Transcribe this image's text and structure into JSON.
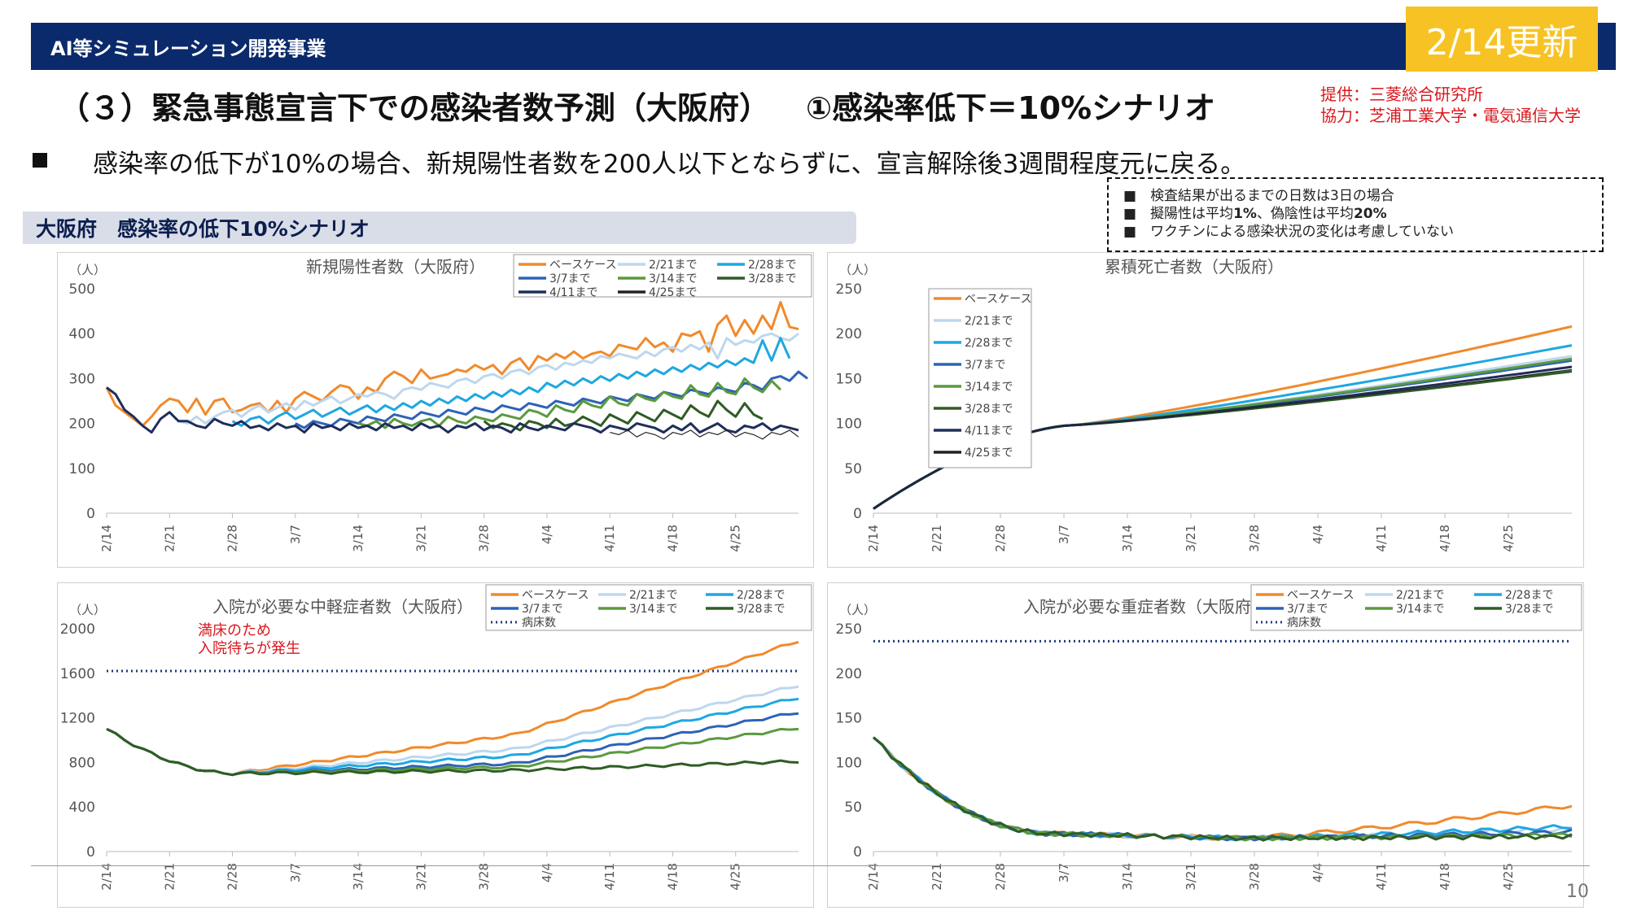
{
  "header": {
    "title": "AI等シミュレーション開発事業",
    "update_badge": "2/14更新"
  },
  "slide": {
    "title": "（３）緊急事態宣言下での感染者数予測（大阪府）",
    "scenario": "①感染率低下＝10%シナリオ",
    "provider": "提供：三菱総合研究所",
    "cooperation": "協力：芝浦工業大学・電気通信大学",
    "summary": "感染率の低下が10%の場合、新規陽性者数を200人以下とならずに、宣言解除後3週間程度元に戻る。",
    "notes": [
      {
        "pre": "検査結果が出るまでの日数は3日の場合",
        "bold1": "",
        "mid": "",
        "bold2": ""
      },
      {
        "pre": "擬陽性は平均",
        "bold1": "1%",
        "mid": "、偽陰性は平均",
        "bold2": "20%"
      },
      {
        "pre": "ワクチンによる感染状況の変化は考慮していない",
        "bold1": "",
        "mid": "",
        "bold2": ""
      }
    ],
    "section_label": "大阪府　感染率の低下10%シナリオ",
    "page_number": "10"
  },
  "colors": {
    "header_bg": "#0b2a6b",
    "badge": "#f7c324",
    "accent_red": "#d9171d",
    "base": "#f08a2c",
    "s221": "#bdd7ee",
    "s228": "#1ea7e1",
    "s37": "#2e62b8",
    "s314": "#5a9a3e",
    "s328": "#2f5c24",
    "s411": "#1f2e5a",
    "s425": "#222222",
    "beds": "#1f3a7a"
  },
  "chart_data": [
    {
      "type": "line",
      "title": "新規陽性者数（大阪府）",
      "unit": "（人）",
      "ylim": [
        0,
        500
      ],
      "yticks": [
        0,
        100,
        200,
        300,
        400,
        500
      ],
      "xticks": [
        "2/14",
        "2/21",
        "2/28",
        "3/7",
        "3/14",
        "3/21",
        "3/28",
        "4/4",
        "4/11",
        "4/18",
        "4/25"
      ],
      "x_days": 78,
      "legend": "top-right",
      "series": [
        {
          "name": "ベースケース",
          "color": "#f08a2c",
          "start": 0,
          "values": [
            280,
            240,
            225,
            210,
            195,
            215,
            240,
            255,
            250,
            225,
            255,
            220,
            250,
            255,
            225,
            230,
            240,
            245,
            225,
            250,
            225,
            255,
            270,
            260,
            250,
            270,
            285,
            280,
            255,
            280,
            270,
            300,
            315,
            305,
            290,
            320,
            300,
            305,
            310,
            320,
            315,
            330,
            320,
            330,
            310,
            335,
            345,
            320,
            350,
            340,
            355,
            345,
            360,
            345,
            355,
            360,
            350,
            375,
            370,
            365,
            390,
            370,
            380,
            360,
            400,
            395,
            405,
            360,
            420,
            440,
            395,
            430,
            400,
            440,
            410,
            470,
            415,
            410
          ]
        },
        {
          "name": "2/21まで",
          "color": "#bdd7ee",
          "start": 7,
          "values": [
            225,
            205,
            200,
            215,
            200,
            215,
            225,
            230,
            215,
            230,
            240,
            225,
            235,
            245,
            230,
            250,
            240,
            250,
            260,
            245,
            255,
            265,
            260,
            270,
            265,
            255,
            275,
            280,
            275,
            290,
            285,
            280,
            295,
            300,
            290,
            305,
            310,
            300,
            315,
            320,
            310,
            325,
            330,
            320,
            335,
            330,
            340,
            335,
            350,
            345,
            355,
            350,
            345,
            360,
            350,
            365,
            370,
            360,
            375,
            365,
            380,
            345,
            390,
            375,
            385,
            380,
            395,
            400,
            390,
            385,
            400
          ]
        },
        {
          "name": "2/28まで",
          "color": "#1ea7e1",
          "start": 14,
          "values": [
            205,
            195,
            210,
            215,
            200,
            215,
            225,
            210,
            220,
            230,
            215,
            225,
            235,
            220,
            230,
            240,
            225,
            240,
            230,
            245,
            235,
            250,
            240,
            255,
            245,
            260,
            250,
            265,
            255,
            270,
            260,
            275,
            265,
            280,
            270,
            290,
            280,
            295,
            285,
            300,
            290,
            305,
            295,
            310,
            300,
            315,
            305,
            320,
            310,
            325,
            315,
            330,
            320,
            335,
            325,
            340,
            330,
            345,
            335,
            385,
            340,
            390,
            345
          ]
        },
        {
          "name": "3/7まで",
          "color": "#2e62b8",
          "start": 21,
          "values": [
            200,
            190,
            205,
            200,
            195,
            210,
            205,
            200,
            215,
            210,
            205,
            220,
            215,
            210,
            225,
            220,
            215,
            230,
            225,
            220,
            235,
            230,
            225,
            240,
            235,
            230,
            245,
            240,
            235,
            250,
            245,
            240,
            255,
            250,
            245,
            260,
            255,
            250,
            265,
            260,
            255,
            270,
            265,
            260,
            275,
            270,
            265,
            280,
            275,
            270,
            290,
            285,
            275,
            300,
            305,
            295,
            315,
            300
          ]
        },
        {
          "name": "3/14まで",
          "color": "#5a9a3e",
          "start": 28,
          "values": [
            200,
            195,
            205,
            190,
            210,
            200,
            195,
            205,
            210,
            195,
            215,
            205,
            200,
            215,
            210,
            205,
            220,
            215,
            210,
            230,
            225,
            215,
            240,
            230,
            225,
            250,
            240,
            235,
            260,
            245,
            240,
            265,
            255,
            250,
            270,
            260,
            255,
            285,
            265,
            260,
            290,
            270,
            265,
            300,
            280,
            270,
            295,
            275
          ]
        },
        {
          "name": "3/28まで",
          "color": "#2f5c24",
          "start": 42,
          "values": [
            205,
            190,
            200,
            195,
            185,
            205,
            200,
            190,
            210,
            195,
            200,
            215,
            205,
            195,
            220,
            210,
            200,
            225,
            215,
            205,
            230,
            220,
            210,
            240,
            225,
            215,
            250,
            230,
            215,
            245,
            220,
            210
          ]
        },
        {
          "name": "4/11まで",
          "color": "#1f2e5a",
          "start": 0,
          "values": [
            280,
            265,
            230,
            215,
            195,
            180,
            210,
            225,
            205,
            205,
            195,
            190,
            210,
            200,
            195,
            205,
            190,
            195,
            185,
            200,
            190,
            195,
            180,
            200,
            190,
            195,
            185,
            200,
            190,
            195,
            185,
            200,
            190,
            195,
            185,
            200,
            190,
            195,
            180,
            195,
            190,
            200,
            185,
            195,
            190,
            180,
            200,
            190,
            185,
            195,
            190,
            185,
            200,
            195,
            190,
            180,
            195,
            190,
            185,
            200,
            195,
            190,
            180,
            195,
            185,
            200,
            180,
            190,
            200,
            185,
            180,
            195,
            190,
            200,
            185,
            195,
            190,
            185
          ]
        },
        {
          "name": "4/25まで",
          "color": "#222222",
          "start": 56,
          "values": [
            180,
            175,
            185,
            170,
            180,
            175,
            165,
            180,
            175,
            185,
            170,
            180,
            175,
            185,
            170,
            180,
            175,
            165,
            180,
            175,
            185,
            170
          ]
        }
      ]
    },
    {
      "type": "line",
      "title": "累積死亡者数（大阪府）",
      "unit": "（人）",
      "ylim": [
        0,
        250
      ],
      "yticks": [
        0,
        50,
        100,
        150,
        200,
        250
      ],
      "xticks": [
        "2/14",
        "2/21",
        "2/28",
        "3/7",
        "3/14",
        "3/21",
        "3/28",
        "4/4",
        "4/11",
        "4/18",
        "4/25"
      ],
      "x_days": 78,
      "legend": "top-left",
      "series": [
        {
          "name": "ベースケース",
          "color": "#f08a2c",
          "end": 208
        },
        {
          "name": "2/21まで",
          "color": "#bdd7ee",
          "end": 175
        },
        {
          "name": "2/28まで",
          "color": "#1ea7e1",
          "end": 187
        },
        {
          "name": "3/7まで",
          "color": "#2e62b8",
          "end": 170
        },
        {
          "name": "3/14まで",
          "color": "#5a9a3e",
          "end": 172
        },
        {
          "name": "3/28まで",
          "color": "#2f5c24",
          "end": 158
        },
        {
          "name": "4/11まで",
          "color": "#1f2e5a",
          "end": 163
        },
        {
          "name": "4/25まで",
          "color": "#222222",
          "end": 160
        }
      ]
    },
    {
      "type": "line",
      "title": "入院が必要な中軽症者数（大阪府）",
      "unit": "（人）",
      "ylim": [
        0,
        2000
      ],
      "yticks": [
        0,
        400,
        800,
        1200,
        1600,
        2000
      ],
      "xticks": [
        "2/14",
        "2/21",
        "2/28",
        "3/7",
        "3/14",
        "3/21",
        "3/28",
        "4/4",
        "4/11",
        "4/18",
        "4/25"
      ],
      "x_days": 78,
      "legend": "top-right",
      "annotation": "満床のため 入院待ちが発生",
      "bed_line": {
        "name": "病床数",
        "value": 1620
      },
      "series": [
        {
          "name": "ベースケース",
          "color": "#f08a2c",
          "end": 1890,
          "mid": 1050
        },
        {
          "name": "2/21まで",
          "color": "#bdd7ee",
          "end": 1490,
          "mid": 920
        },
        {
          "name": "2/28まで",
          "color": "#1ea7e1",
          "end": 1380,
          "mid": 860
        },
        {
          "name": "3/7まで",
          "color": "#2e62b8",
          "end": 1250,
          "mid": 790
        },
        {
          "name": "3/14まで",
          "color": "#5a9a3e",
          "end": 1110,
          "mid": 760
        },
        {
          "name": "3/28まで",
          "color": "#2f5c24",
          "end": 810,
          "mid": 730
        }
      ]
    },
    {
      "type": "line",
      "title": "入院が必要な重症者数（大阪府）",
      "unit": "（人）",
      "ylim": [
        0,
        250
      ],
      "yticks": [
        0,
        50,
        100,
        150,
        200,
        250
      ],
      "xticks": [
        "2/14",
        "2/21",
        "2/28",
        "3/7",
        "3/14",
        "3/21",
        "3/28",
        "4/4",
        "4/11",
        "4/18",
        "4/25"
      ],
      "x_days": 78,
      "legend": "top-right",
      "bed_line": {
        "name": "病床数",
        "value": 236
      },
      "series": [
        {
          "name": "ベースケース",
          "color": "#f08a2c",
          "end": 52
        },
        {
          "name": "2/21まで",
          "color": "#bdd7ee",
          "end": 25
        },
        {
          "name": "2/28まで",
          "color": "#1ea7e1",
          "end": 28
        },
        {
          "name": "3/7まで",
          "color": "#2e62b8",
          "end": 22
        },
        {
          "name": "3/14まで",
          "color": "#5a9a3e",
          "end": 19
        },
        {
          "name": "3/28まで",
          "color": "#2f5c24",
          "end": 17
        }
      ]
    }
  ]
}
